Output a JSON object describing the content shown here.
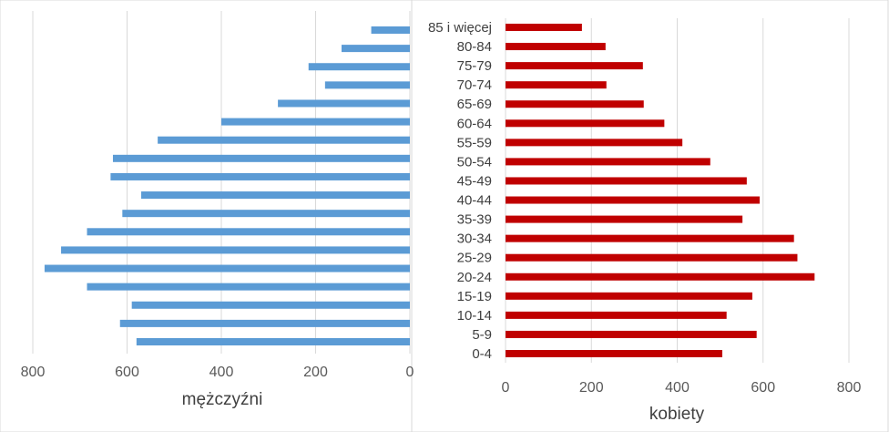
{
  "chart_data": [
    {
      "type": "bar",
      "orientation": "horizontal",
      "reversed_x": true,
      "xlabel": "mężczyźni",
      "xlim": [
        0,
        800
      ],
      "xticks": [
        "800",
        "600",
        "400",
        "200",
        "0"
      ],
      "categories": [
        "0-4",
        "5-9",
        "10-14",
        "15-19",
        "20-24",
        "25-29",
        "30-34",
        "35-39",
        "40-44",
        "45-49",
        "50-54",
        "55-59",
        "60-64",
        "65-69",
        "70-74",
        "75-79",
        "80-84",
        "85 i więcej"
      ],
      "values": [
        580,
        615,
        590,
        685,
        775,
        740,
        685,
        610,
        570,
        635,
        630,
        535,
        400,
        280,
        180,
        215,
        145,
        82
      ],
      "color": "#5b9bd5",
      "grid": "vertical"
    },
    {
      "type": "bar",
      "orientation": "horizontal",
      "xlabel": "kobiety",
      "xlim": [
        0,
        800
      ],
      "xticks": [
        "0",
        "200",
        "400",
        "600",
        "800"
      ],
      "categories": [
        "0-4",
        "5-9",
        "10-14",
        "15-19",
        "20-24",
        "25-29",
        "30-34",
        "35-39",
        "40-44",
        "45-49",
        "50-54",
        "55-59",
        "60-64",
        "65-69",
        "70-74",
        "75-79",
        "80-84",
        "85 i więcej"
      ],
      "values": [
        505,
        585,
        515,
        575,
        720,
        680,
        672,
        552,
        592,
        562,
        477,
        412,
        370,
        322,
        235,
        320,
        233,
        178
      ],
      "color": "#c00000",
      "grid": "vertical"
    }
  ]
}
